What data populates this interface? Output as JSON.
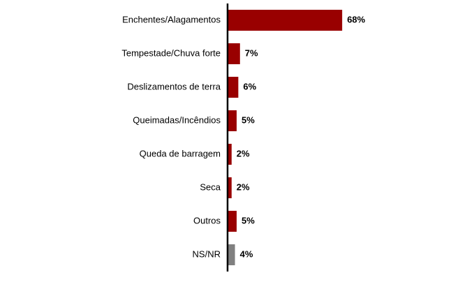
{
  "chart_data": {
    "type": "hbar",
    "categories": [
      "Enchentes/Alagamentos",
      "Tempestade/Chuva forte",
      "Deslizamentos de terra",
      "Queimadas/Incêndios",
      "Queda de barragem",
      "Seca",
      "Outros",
      "NS/NR"
    ],
    "values": [
      68,
      7,
      6,
      5,
      2,
      2,
      5,
      4
    ],
    "value_labels": [
      "68%",
      "7%",
      "6%",
      "5%",
      "2%",
      "2%",
      "5%",
      "4%"
    ],
    "colors": [
      "#990000",
      "#990000",
      "#990000",
      "#990000",
      "#990000",
      "#990000",
      "#990000",
      "#808080"
    ]
  }
}
